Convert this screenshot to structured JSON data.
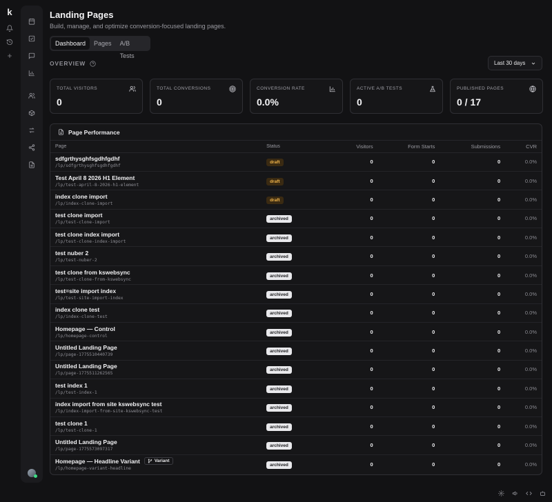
{
  "app": {
    "logo": "k"
  },
  "header": {
    "title": "Landing Pages",
    "subtitle": "Build, manage, and optimize conversion-focused landing pages."
  },
  "tabs": [
    {
      "label": "Dashboard",
      "active": true
    },
    {
      "label": "Pages",
      "active": false
    },
    {
      "label": "A/B Tests",
      "active": false
    }
  ],
  "overview": {
    "label": "OVERVIEW",
    "range": "Last 30 days"
  },
  "stats": [
    {
      "label": "TOTAL VISITORS",
      "value": "0",
      "icon": "users-icon"
    },
    {
      "label": "TOTAL CONVERSIONS",
      "value": "0",
      "icon": "target-icon"
    },
    {
      "label": "CONVERSION RATE",
      "value": "0.0%",
      "icon": "bar-chart-icon"
    },
    {
      "label": "ACTIVE A/B TESTS",
      "value": "0",
      "icon": "flask-icon"
    },
    {
      "label": "PUBLISHED PAGES",
      "value": "0 / 17",
      "icon": "globe-icon"
    }
  ],
  "performance": {
    "title": "Page Performance",
    "columns": [
      "Page",
      "Status",
      "Visitors",
      "Form Starts",
      "Submissions",
      "CVR"
    ],
    "rows": [
      {
        "name": "sdfgrthysghfsgdhfgdhf",
        "slug": "/lp/sdfgrthysghfsgdhfgdhf",
        "status": "draft",
        "visitors": "0",
        "form_starts": "0",
        "submissions": "0",
        "cvr": "0.0%"
      },
      {
        "name": "Test April 8 2026 H1 Element",
        "slug": "/lp/test-april-8-2026-h1-element",
        "status": "draft",
        "visitors": "0",
        "form_starts": "0",
        "submissions": "0",
        "cvr": "0.0%"
      },
      {
        "name": "index clone import",
        "slug": "/lp/index-clone-import",
        "status": "draft",
        "visitors": "0",
        "form_starts": "0",
        "submissions": "0",
        "cvr": "0.0%"
      },
      {
        "name": "test clone import",
        "slug": "/lp/test-clone-import",
        "status": "archived",
        "visitors": "0",
        "form_starts": "0",
        "submissions": "0",
        "cvr": "0.0%"
      },
      {
        "name": "test clone index import",
        "slug": "/lp/test-clone-index-import",
        "status": "archived",
        "visitors": "0",
        "form_starts": "0",
        "submissions": "0",
        "cvr": "0.0%"
      },
      {
        "name": "test nuber 2",
        "slug": "/lp/test-nuber-2",
        "status": "archived",
        "visitors": "0",
        "form_starts": "0",
        "submissions": "0",
        "cvr": "0.0%"
      },
      {
        "name": "test clone from kswebsync",
        "slug": "/lp/test-clone-from-kswebsync",
        "status": "archived",
        "visitors": "0",
        "form_starts": "0",
        "submissions": "0",
        "cvr": "0.0%"
      },
      {
        "name": "test=site import index",
        "slug": "/lp/test-site-import-index",
        "status": "archived",
        "visitors": "0",
        "form_starts": "0",
        "submissions": "0",
        "cvr": "0.0%"
      },
      {
        "name": "index clone test",
        "slug": "/lp/index-clone-test",
        "status": "archived",
        "visitors": "0",
        "form_starts": "0",
        "submissions": "0",
        "cvr": "0.0%"
      },
      {
        "name": "Homepage — Control",
        "slug": "/lp/homepage-control",
        "status": "archived",
        "visitors": "0",
        "form_starts": "0",
        "submissions": "0",
        "cvr": "0.0%"
      },
      {
        "name": "Untitled Landing Page",
        "slug": "/lp/page-1775510440739",
        "status": "archived",
        "visitors": "0",
        "form_starts": "0",
        "submissions": "0",
        "cvr": "0.0%"
      },
      {
        "name": "Untitled Landing Page",
        "slug": "/lp/page-1775511262565",
        "status": "archived",
        "visitors": "0",
        "form_starts": "0",
        "submissions": "0",
        "cvr": "0.0%"
      },
      {
        "name": "test index 1",
        "slug": "/lp/test-index-1",
        "status": "archived",
        "visitors": "0",
        "form_starts": "0",
        "submissions": "0",
        "cvr": "0.0%"
      },
      {
        "name": "index import from site kswebsync test",
        "slug": "/lp/index-import-from-site-kswebsync-test",
        "status": "archived",
        "visitors": "0",
        "form_starts": "0",
        "submissions": "0",
        "cvr": "0.0%"
      },
      {
        "name": "test clone 1",
        "slug": "/lp/test-clone-1",
        "status": "archived",
        "visitors": "0",
        "form_starts": "0",
        "submissions": "0",
        "cvr": "0.0%"
      },
      {
        "name": "Untitled Landing Page",
        "slug": "/lp/page-1775573097317",
        "status": "archived",
        "visitors": "0",
        "form_starts": "0",
        "submissions": "0",
        "cvr": "0.0%"
      },
      {
        "name": "Homepage — Headline Variant",
        "slug": "/lp/homepage-variant-headline",
        "status": "archived",
        "variant_label": "Variant",
        "visitors": "0",
        "form_starts": "0",
        "submissions": "0",
        "cvr": "0.0%"
      }
    ]
  },
  "colors": {
    "draft": "#f0b44a",
    "archived_bg": "#e9e9ec",
    "background": "#121214"
  }
}
